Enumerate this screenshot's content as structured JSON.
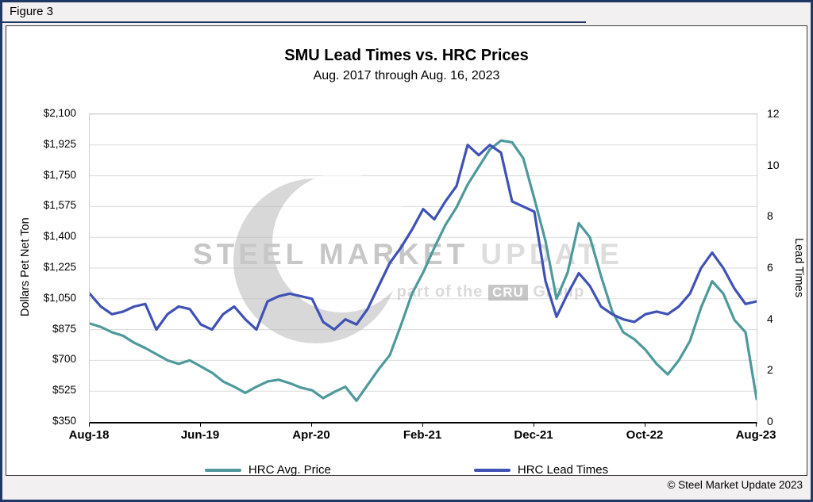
{
  "figure_label": "Figure 3",
  "copyright": "© Steel Market Update 2023",
  "watermark": {
    "word1": "STEEL",
    "word2": "MARKET",
    "word3": "UPDATE",
    "sub_prefix": "part of the",
    "badge": "CRU",
    "sub_suffix": "Group"
  },
  "colors": {
    "page_border": "#203864",
    "price_line": "#4e999b",
    "lead_line": "#3f51b5",
    "grid": "#dcdcdc"
  },
  "chart_data": {
    "type": "line",
    "title": "SMU Lead Times vs. HRC Prices",
    "subtitle": "Aug. 2017 through Aug. 16, 2023",
    "grid": "horizontal",
    "legend_position": "bottom",
    "x_tick_labels": [
      "Aug-18",
      "Jun-19",
      "Apr-20",
      "Feb-21",
      "Dec-21",
      "Oct-22",
      "Aug-23"
    ],
    "x": [
      "Aug-18",
      "Sep-18",
      "Oct-18",
      "Nov-18",
      "Dec-18",
      "Jan-19",
      "Feb-19",
      "Mar-19",
      "Apr-19",
      "May-19",
      "Jun-19",
      "Jul-19",
      "Aug-19",
      "Sep-19",
      "Oct-19",
      "Nov-19",
      "Dec-19",
      "Jan-20",
      "Feb-20",
      "Mar-20",
      "Apr-20",
      "May-20",
      "Jun-20",
      "Jul-20",
      "Aug-20",
      "Sep-20",
      "Oct-20",
      "Nov-20",
      "Dec-20",
      "Jan-21",
      "Feb-21",
      "Mar-21",
      "Apr-21",
      "May-21",
      "Jun-21",
      "Jul-21",
      "Aug-21",
      "Sep-21",
      "Oct-21",
      "Nov-21",
      "Dec-21",
      "Jan-22",
      "Feb-22",
      "Mar-22",
      "Apr-22",
      "May-22",
      "Jun-22",
      "Jul-22",
      "Aug-22",
      "Sep-22",
      "Oct-22",
      "Nov-22",
      "Dec-22",
      "Jan-23",
      "Feb-23",
      "Mar-23",
      "Apr-23",
      "May-23",
      "Jun-23",
      "Jul-23",
      "Aug-23"
    ],
    "y_left": {
      "label": "Dollars Pet Net Ton",
      "min": 350,
      "max": 2100,
      "step": 175,
      "tick_labels": [
        "$350",
        "$525",
        "$700",
        "$875",
        "$1,050",
        "$1,225",
        "$1,400",
        "$1,575",
        "$1,750",
        "$1,925",
        "$2,100"
      ]
    },
    "y_right": {
      "label": "Lead Times",
      "min": 0,
      "max": 12,
      "step": 2,
      "tick_labels": [
        "0",
        "2",
        "4",
        "6",
        "8",
        "10",
        "12"
      ]
    },
    "series": [
      {
        "name": "HRC Avg. Price",
        "axis": "left",
        "color": "#4e999b",
        "values": [
          910,
          890,
          860,
          840,
          800,
          770,
          735,
          700,
          680,
          700,
          665,
          630,
          580,
          550,
          515,
          550,
          580,
          590,
          570,
          545,
          530,
          485,
          520,
          550,
          470,
          560,
          650,
          730,
          900,
          1080,
          1200,
          1340,
          1470,
          1570,
          1700,
          1800,
          1900,
          1950,
          1940,
          1850,
          1620,
          1380,
          1050,
          1200,
          1480,
          1400,
          1180,
          980,
          860,
          820,
          760,
          680,
          620,
          700,
          810,
          1000,
          1150,
          1080,
          930,
          860,
          480
        ]
      },
      {
        "name": "HRC Lead Times",
        "axis": "right",
        "color": "#3f51b5",
        "values": [
          5.0,
          4.5,
          4.2,
          4.3,
          4.5,
          4.6,
          3.6,
          4.2,
          4.5,
          4.4,
          3.8,
          3.6,
          4.2,
          4.5,
          4.0,
          3.6,
          4.7,
          4.9,
          5.0,
          4.9,
          4.8,
          3.9,
          3.6,
          4.0,
          3.8,
          4.4,
          5.3,
          6.2,
          6.8,
          7.5,
          8.3,
          7.9,
          8.6,
          9.2,
          10.8,
          10.4,
          10.8,
          10.5,
          8.6,
          8.4,
          8.2,
          5.5,
          4.1,
          5.0,
          5.8,
          5.3,
          4.5,
          4.2,
          4.0,
          3.9,
          4.2,
          4.3,
          4.2,
          4.5,
          5.0,
          6.0,
          6.6,
          6.0,
          5.2,
          4.6,
          4.7
        ]
      }
    ]
  }
}
